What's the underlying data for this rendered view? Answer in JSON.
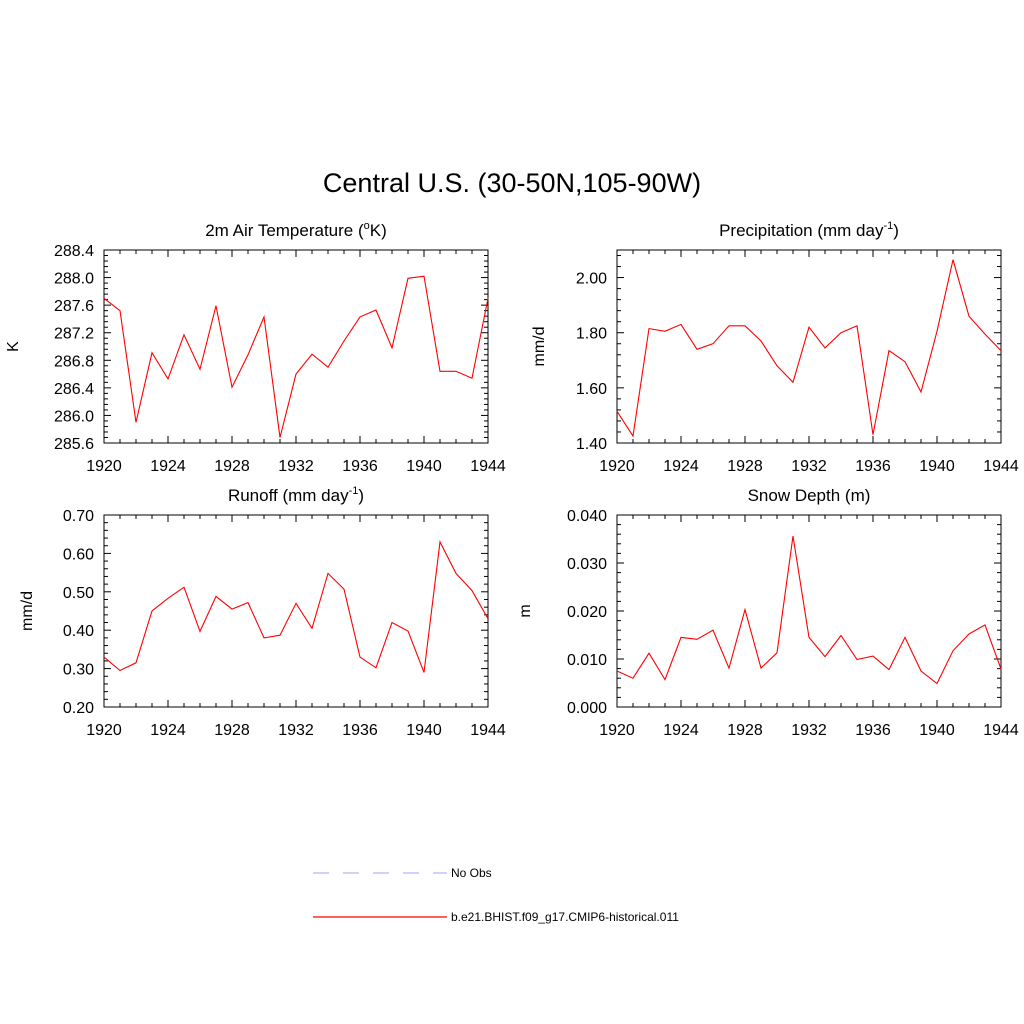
{
  "title": "Central U.S. (30-50N,105-90W)",
  "chart_data": [
    {
      "type": "line",
      "title": "2m Air Temperature (",
      "title_parts": [
        "2m Air Temperature (",
        "o",
        "K)"
      ],
      "ylabel": "K",
      "x": [
        1920,
        1921,
        1922,
        1923,
        1924,
        1925,
        1926,
        1927,
        1928,
        1929,
        1930,
        1931,
        1932,
        1933,
        1934,
        1935,
        1936,
        1937,
        1938,
        1939,
        1940,
        1941,
        1942,
        1943,
        1944
      ],
      "xlim": [
        1920,
        1944
      ],
      "xticks": [
        "1920",
        "1924",
        "1928",
        "1932",
        "1936",
        "1940",
        "1944"
      ],
      "ylim": [
        285.6,
        288.4
      ],
      "yticks": [
        "285.6",
        "286.0",
        "286.4",
        "286.8",
        "287.2",
        "287.6",
        "288.0",
        "288.4"
      ],
      "series": [
        {
          "values": [
            287.7,
            287.52,
            285.9,
            286.91,
            286.53,
            287.17,
            286.67,
            287.59,
            286.41,
            286.88,
            287.43,
            285.68,
            286.6,
            286.89,
            286.7,
            287.08,
            287.43,
            287.53,
            286.98,
            287.99,
            288.02,
            286.64,
            286.64,
            286.54,
            287.7
          ]
        }
      ]
    },
    {
      "type": "line",
      "title_parts": [
        "Precipitation (mm day",
        "-1",
        ")"
      ],
      "ylabel": "mm/d",
      "x": [
        1920,
        1921,
        1922,
        1923,
        1924,
        1925,
        1926,
        1927,
        1928,
        1929,
        1930,
        1931,
        1932,
        1933,
        1934,
        1935,
        1936,
        1937,
        1938,
        1939,
        1940,
        1941,
        1942,
        1943,
        1944
      ],
      "xlim": [
        1920,
        1944
      ],
      "xticks": [
        "1920",
        "1924",
        "1928",
        "1932",
        "1936",
        "1940",
        "1944"
      ],
      "ylim": [
        1.4,
        2.1
      ],
      "yticks": [
        "1.40",
        "1.60",
        "1.80",
        "2.00"
      ],
      "series": [
        {
          "values": [
            1.515,
            1.425,
            1.815,
            1.805,
            1.83,
            1.74,
            1.76,
            1.825,
            1.825,
            1.77,
            1.68,
            1.62,
            1.82,
            1.745,
            1.8,
            1.825,
            1.43,
            1.735,
            1.695,
            1.585,
            1.805,
            2.065,
            1.86,
            1.795,
            1.735
          ]
        }
      ]
    },
    {
      "type": "line",
      "title_parts": [
        "Runoff (mm day",
        "-1",
        ")"
      ],
      "ylabel": "mm/d",
      "x": [
        1920,
        1921,
        1922,
        1923,
        1924,
        1925,
        1926,
        1927,
        1928,
        1929,
        1930,
        1931,
        1932,
        1933,
        1934,
        1935,
        1936,
        1937,
        1938,
        1939,
        1940,
        1941,
        1942,
        1943,
        1944
      ],
      "xlim": [
        1920,
        1944
      ],
      "xticks": [
        "1920",
        "1924",
        "1928",
        "1932",
        "1936",
        "1940",
        "1944"
      ],
      "ylim": [
        0.2,
        0.7
      ],
      "yticks": [
        "0.20",
        "0.30",
        "0.40",
        "0.50",
        "0.60",
        "0.70"
      ],
      "series": [
        {
          "values": [
            0.33,
            0.295,
            0.315,
            0.45,
            0.483,
            0.512,
            0.397,
            0.488,
            0.455,
            0.472,
            0.38,
            0.387,
            0.47,
            0.405,
            0.548,
            0.507,
            0.33,
            0.302,
            0.42,
            0.398,
            0.29,
            0.63,
            0.548,
            0.503,
            0.43
          ]
        }
      ]
    },
    {
      "type": "line",
      "title_parts": [
        "Snow Depth (m)",
        "",
        ""
      ],
      "ylabel": "m",
      "x": [
        1920,
        1921,
        1922,
        1923,
        1924,
        1925,
        1926,
        1927,
        1928,
        1929,
        1930,
        1931,
        1932,
        1933,
        1934,
        1935,
        1936,
        1937,
        1938,
        1939,
        1940,
        1941,
        1942,
        1943,
        1944
      ],
      "xlim": [
        1920,
        1944
      ],
      "xticks": [
        "1920",
        "1924",
        "1928",
        "1932",
        "1936",
        "1940",
        "1944"
      ],
      "ylim": [
        0.0,
        0.04
      ],
      "yticks": [
        "0.000",
        "0.010",
        "0.020",
        "0.030",
        "0.040"
      ],
      "series": [
        {
          "values": [
            0.0075,
            0.006,
            0.0112,
            0.0057,
            0.0145,
            0.0141,
            0.016,
            0.0081,
            0.0203,
            0.0081,
            0.0113,
            0.0356,
            0.0145,
            0.0105,
            0.0149,
            0.0099,
            0.0106,
            0.0078,
            0.0145,
            0.0075,
            0.0049,
            0.0117,
            0.0152,
            0.0171,
            0.0079
          ]
        }
      ]
    }
  ],
  "legend": {
    "placement": "bottom-center",
    "items": [
      {
        "label": "No Obs",
        "color": "#b3b3ff",
        "dash": true
      },
      {
        "label": "b.e21.BHIST.f09_g17.CMIP6-historical.011",
        "color": "#ff0000",
        "dash": false
      }
    ]
  },
  "colors": {
    "series": "#ff0000",
    "axis": "#000000"
  }
}
